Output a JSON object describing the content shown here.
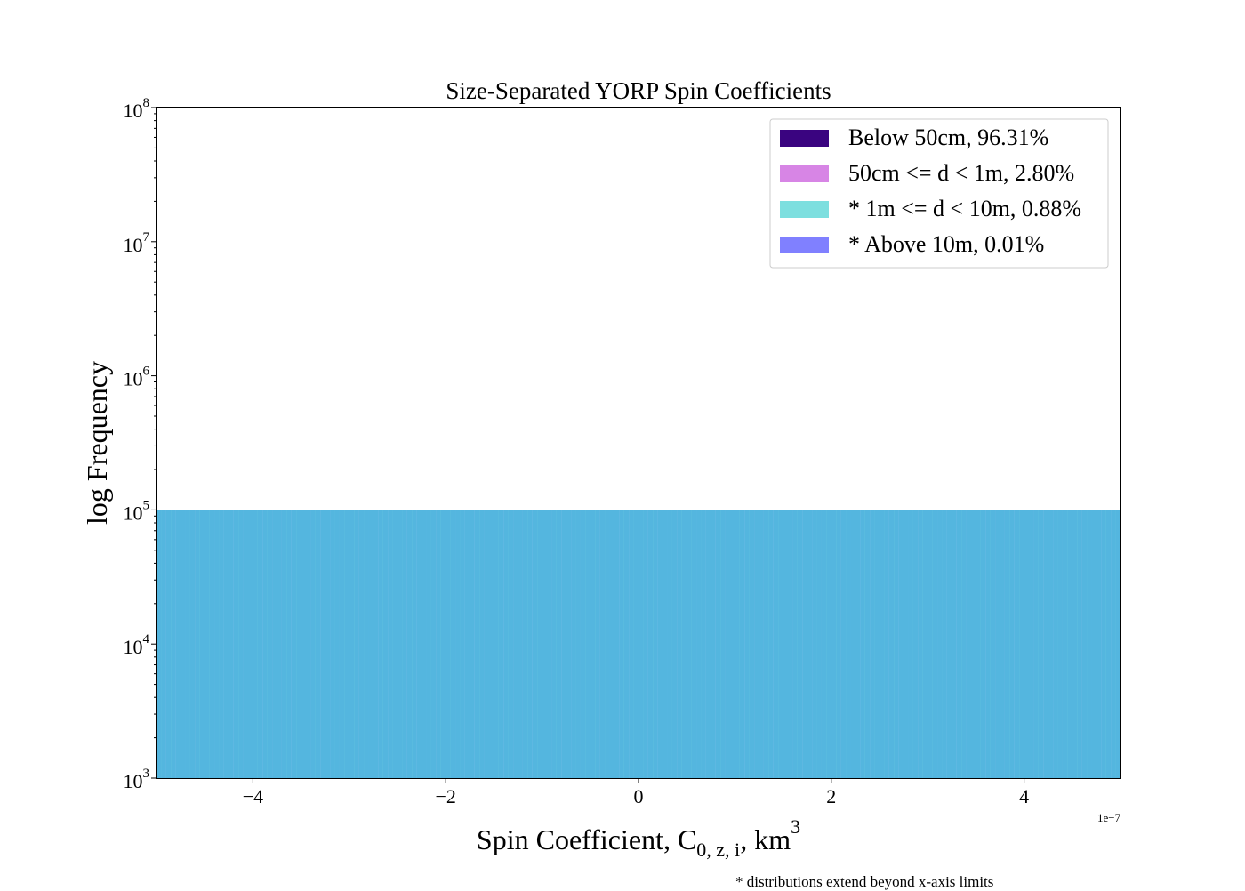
{
  "chart_data": {
    "type": "bar",
    "title": "Size-Separated YORP Spin Coefficients",
    "xlabel": "Spin Coefficient, C",
    "xlabel_subscript": "0, z, i",
    "xlabel_suffix": ", km",
    "xlabel_superscript": "3",
    "ylabel": "log Frequency",
    "x_offset_label": "1e−7",
    "x_scale": "×1e-7",
    "y_scale": "log",
    "xlim": [
      -5,
      5
    ],
    "ylim": [
      1000,
      100000000
    ],
    "x_ticks": [
      -4,
      -2,
      0,
      2,
      4
    ],
    "x_tick_labels": [
      "−4",
      "−2",
      "0",
      "2",
      "4"
    ],
    "y_ticks": [
      1000,
      10000,
      100000,
      1000000,
      10000000,
      100000000
    ],
    "y_tick_labels": [
      {
        "base": "10",
        "exp": "3"
      },
      {
        "base": "10",
        "exp": "4"
      },
      {
        "base": "10",
        "exp": "5"
      },
      {
        "base": "10",
        "exp": "6"
      },
      {
        "base": "10",
        "exp": "7"
      },
      {
        "base": "10",
        "exp": "8"
      }
    ],
    "legend_position": "top-right",
    "grid": false,
    "series": [
      {
        "name": "* Above 10m, 0.01%",
        "color": "#8080ff",
        "opacity": 1.0,
        "bin_width": 0.05,
        "x_start": -5,
        "values": [
          100000,
          100000,
          100000,
          100000,
          100000,
          100000,
          100000,
          100000,
          100000,
          100000,
          100000,
          100000,
          100000,
          100000,
          100000,
          100000,
          100000,
          100000,
          100000,
          100000,
          100000,
          100000,
          100000,
          100000,
          100000,
          100000,
          100000,
          100000,
          100000,
          100000,
          100000,
          100000,
          100000,
          100000,
          100000,
          100000,
          100000,
          100000,
          100000,
          100000,
          100000,
          100000,
          100000,
          100000,
          100000,
          100000,
          100000,
          100000,
          100000,
          100000,
          100000,
          100000,
          100000,
          100000,
          100000,
          100000,
          100000,
          100000,
          100000,
          100000,
          100000,
          100000,
          100000,
          100000,
          100000,
          100000,
          100000,
          100000,
          100000,
          100000,
          100000,
          100000,
          100000,
          100000,
          100000,
          100000,
          100000,
          100000,
          100000,
          100000,
          100000,
          100000,
          100000,
          100000,
          100000,
          100000,
          100000,
          100000,
          100000,
          100000,
          100000,
          100000,
          100000,
          100000,
          100000,
          100000,
          100000,
          100000,
          100000,
          100000,
          100000,
          100000,
          100000,
          100000,
          100000,
          100000,
          100000,
          100000,
          100000,
          100000,
          100000,
          100000,
          100000,
          100000,
          100000,
          100000,
          100000,
          100000,
          100000,
          100000,
          100000,
          100000,
          100000,
          100000,
          100000,
          100000,
          100000,
          100000,
          100000,
          100000,
          100000,
          100000,
          100000,
          100000,
          100000,
          100000,
          100000,
          100000,
          100000,
          100000,
          100000,
          100000,
          100000,
          100000,
          100000,
          100000,
          100000,
          100000,
          100000,
          100000,
          100000,
          100000,
          100000,
          100000,
          100000,
          100000,
          100000,
          100000,
          100000,
          100000,
          100000,
          100000,
          100000,
          100000,
          100000,
          100000,
          100000,
          100000,
          100000,
          100000,
          100000,
          100000,
          100000,
          100000,
          100000,
          100000,
          100000,
          100000,
          100000,
          100000,
          100000,
          100000,
          100000,
          100000,
          100000,
          100000,
          100000,
          100000,
          100000,
          100000,
          100000,
          100000,
          100000,
          100000,
          100000,
          100000,
          100000,
          100000,
          100000,
          100000,
          100000,
          100000,
          100000,
          100000,
          100000,
          100000
        ]
      },
      {
        "name": "* 1m <= d < 10m, 0.88%",
        "color": "#40d0d0",
        "opacity": 0.68,
        "bin_width": 0.1,
        "x_start": -5,
        "values": [
          100000,
          100000,
          100000,
          100000,
          100000,
          100000,
          100000,
          100000,
          100000,
          100000,
          100000,
          100000,
          100000,
          100000,
          100000,
          100000,
          100000,
          100000,
          100000,
          100000,
          100000,
          100000,
          100000,
          100000,
          100000,
          100000,
          100000,
          100000,
          100000,
          100000,
          100000,
          100000,
          100000,
          100000,
          100000,
          100000,
          100000,
          100000,
          100000,
          100000,
          100000,
          100000,
          100000,
          100000,
          100000,
          100000,
          100000,
          100000,
          100000,
          100000,
          100000,
          100000,
          100000,
          100000,
          100000,
          100000,
          100000,
          100000,
          100000,
          100000,
          100000,
          100000,
          100000,
          100000,
          100000,
          100000,
          100000,
          100000,
          100000,
          100000,
          100000,
          100000,
          100000,
          100000,
          100000,
          100000,
          100000,
          100000,
          100000,
          100000,
          100000,
          100000,
          100000,
          100000,
          100000,
          100000,
          100000,
          100000,
          100000,
          100000,
          100000,
          100000,
          100000,
          100000,
          100000,
          100000,
          100000,
          100000,
          100000,
          100000
        ]
      },
      {
        "name": "50cm <= d < 1m, 2.80%",
        "color": "#d070e0",
        "opacity": 0.85,
        "bin_width": 0.05,
        "x_start": -1.2,
        "values": []
      },
      {
        "name": "Below 50cm, 96.31%",
        "color": "#3a0480",
        "opacity": 1.0,
        "bin_width": 0.025,
        "x_start": -0.3,
        "values": []
      }
    ]
  },
  "footnote": "* distributions extend beyond x-axis limits"
}
